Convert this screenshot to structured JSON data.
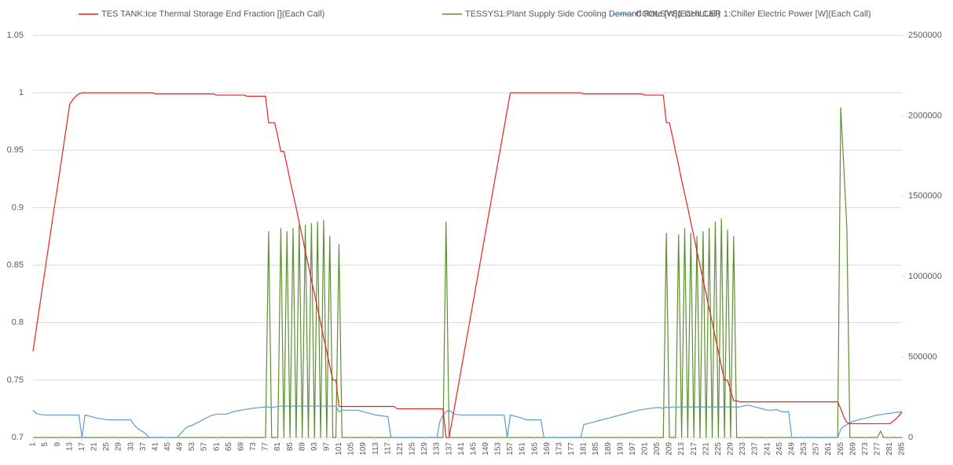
{
  "chart_data": {
    "type": "line",
    "legend": "top",
    "grid": true,
    "xlim": [
      1,
      285
    ],
    "xticks": [
      1,
      5,
      9,
      13,
      17,
      21,
      25,
      29,
      33,
      37,
      41,
      45,
      49,
      53,
      57,
      61,
      65,
      69,
      73,
      77,
      81,
      85,
      89,
      93,
      97,
      101,
      105,
      109,
      113,
      117,
      121,
      125,
      129,
      133,
      137,
      141,
      145,
      149,
      153,
      157,
      161,
      165,
      169,
      173,
      177,
      181,
      185,
      189,
      193,
      197,
      201,
      205,
      209,
      213,
      217,
      221,
      225,
      229,
      233,
      237,
      241,
      245,
      249,
      253,
      257,
      261,
      265,
      269,
      273,
      277,
      281,
      285
    ],
    "ylim": [
      0.7,
      1.05
    ],
    "yticks": [
      0.7,
      0.75,
      0.8,
      0.85,
      0.9,
      0.95,
      1,
      1.05
    ],
    "y2lim": [
      0,
      2500000
    ],
    "y2ticks": [
      0,
      500000,
      1000000,
      1500000,
      2000000,
      2500000
    ],
    "x": [
      1,
      2,
      3,
      4,
      5,
      6,
      7,
      8,
      9,
      10,
      11,
      12,
      13,
      14,
      15,
      16,
      17,
      18,
      19,
      20,
      21,
      22,
      23,
      24,
      25,
      26,
      27,
      28,
      29,
      30,
      31,
      32,
      33,
      34,
      35,
      36,
      37,
      38,
      39,
      40,
      41,
      42,
      43,
      44,
      45,
      46,
      47,
      48,
      49,
      50,
      51,
      52,
      53,
      54,
      55,
      56,
      57,
      58,
      59,
      60,
      61,
      62,
      63,
      64,
      65,
      66,
      67,
      68,
      69,
      70,
      71,
      72,
      73,
      74,
      75,
      76,
      77,
      78,
      79,
      80,
      81,
      82,
      83,
      84,
      85,
      86,
      87,
      88,
      89,
      90,
      91,
      92,
      93,
      94,
      95,
      96,
      97,
      98,
      99,
      100,
      101,
      102,
      103,
      104,
      105,
      106,
      107,
      108,
      109,
      110,
      111,
      112,
      113,
      114,
      115,
      116,
      117,
      118,
      119,
      120,
      121,
      122,
      123,
      124,
      125,
      126,
      127,
      128,
      129,
      130,
      131,
      132,
      133,
      134,
      135,
      136,
      137,
      138,
      139,
      140,
      141,
      142,
      143,
      144,
      145,
      146,
      147,
      148,
      149,
      150,
      151,
      152,
      153,
      154,
      155,
      156,
      157,
      158,
      159,
      160,
      161,
      162,
      163,
      164,
      165,
      166,
      167,
      168,
      169,
      170,
      171,
      172,
      173,
      174,
      175,
      176,
      177,
      178,
      179,
      180,
      181,
      182,
      183,
      184,
      185,
      186,
      187,
      188,
      189,
      190,
      191,
      192,
      193,
      194,
      195,
      196,
      197,
      198,
      199,
      200,
      201,
      202,
      203,
      204,
      205,
      206,
      207,
      208,
      209,
      210,
      211,
      212,
      213,
      214,
      215,
      216,
      217,
      218,
      219,
      220,
      221,
      222,
      223,
      224,
      225,
      226,
      227,
      228,
      229,
      230,
      231,
      232,
      233,
      234,
      235,
      236,
      237,
      238,
      239,
      240,
      241,
      242,
      243,
      244,
      245,
      246,
      247,
      248,
      249,
      250,
      251,
      252,
      253,
      254,
      255,
      256,
      257,
      258,
      259,
      260,
      261,
      262,
      263,
      264,
      265,
      266,
      267,
      268,
      269,
      270,
      271,
      272,
      273,
      274,
      275,
      276,
      277,
      278,
      279,
      280,
      281,
      282,
      283,
      284,
      285
    ],
    "series": [
      {
        "name": "TES TANK:Ice Thermal Storage End Fraction [](Each Call)",
        "color": "#e8231f",
        "axis": "y",
        "values": [
          0.775,
          0.793,
          0.811,
          0.829,
          0.847,
          0.865,
          0.883,
          0.901,
          0.918,
          0.936,
          0.954,
          0.972,
          0.99,
          0.994,
          0.997,
          0.999,
          1,
          1,
          1,
          1,
          1,
          1,
          1,
          1,
          1,
          1,
          1,
          1,
          1,
          1,
          1,
          1,
          1,
          1,
          1,
          1,
          1,
          1,
          1,
          1,
          0.999,
          0.999,
          0.999,
          0.999,
          0.999,
          0.999,
          0.999,
          0.999,
          0.999,
          0.999,
          0.999,
          0.999,
          0.999,
          0.999,
          0.999,
          0.999,
          0.999,
          0.999,
          0.999,
          0.999,
          0.998,
          0.998,
          0.998,
          0.998,
          0.998,
          0.998,
          0.998,
          0.998,
          0.998,
          0.998,
          0.997,
          0.997,
          0.997,
          0.997,
          0.997,
          0.997,
          0.997,
          0.974,
          0.974,
          0.974,
          0.962,
          0.949,
          0.949,
          0.937,
          0.924,
          0.912,
          0.9,
          0.887,
          0.875,
          0.862,
          0.85,
          0.837,
          0.825,
          0.812,
          0.8,
          0.787,
          0.775,
          0.762,
          0.75,
          0.75,
          0.727,
          0.727,
          0.727,
          0.727,
          0.727,
          0.727,
          0.727,
          0.727,
          0.727,
          0.727,
          0.727,
          0.727,
          0.727,
          0.727,
          0.727,
          0.727,
          0.727,
          0.727,
          0.727,
          0.725,
          0.725,
          0.725,
          0.725,
          0.725,
          0.725,
          0.725,
          0.725,
          0.725,
          0.725,
          0.725,
          0.725,
          0.725,
          0.725,
          0.725,
          0.725,
          0.7,
          0.7,
          0.715,
          0.73,
          0.745,
          0.76,
          0.775,
          0.79,
          0.805,
          0.82,
          0.835,
          0.85,
          0.865,
          0.88,
          0.895,
          0.91,
          0.925,
          0.94,
          0.955,
          0.97,
          0.985,
          1,
          1,
          1,
          1,
          1,
          1,
          1,
          1,
          1,
          1,
          1,
          1,
          1,
          1,
          1,
          1,
          1,
          1,
          1,
          1,
          1,
          1,
          1,
          1,
          0.999,
          0.999,
          0.999,
          0.999,
          0.999,
          0.999,
          0.999,
          0.999,
          0.999,
          0.999,
          0.999,
          0.999,
          0.999,
          0.999,
          0.999,
          0.999,
          0.999,
          0.999,
          0.999,
          0.999,
          0.998,
          0.998,
          0.998,
          0.998,
          0.998,
          0.998,
          0.998,
          0.974,
          0.974,
          0.962,
          0.949,
          0.937,
          0.924,
          0.912,
          0.9,
          0.887,
          0.875,
          0.862,
          0.85,
          0.837,
          0.825,
          0.812,
          0.8,
          0.787,
          0.775,
          0.762,
          0.75,
          0.75,
          0.741,
          0.732,
          0.732,
          0.731,
          0.731,
          0.731,
          0.731,
          0.731,
          0.731,
          0.731,
          0.731,
          0.731,
          0.731,
          0.731,
          0.731,
          0.731,
          0.731,
          0.731,
          0.731,
          0.731,
          0.731,
          0.731,
          0.731,
          0.731,
          0.731,
          0.731,
          0.731,
          0.731,
          0.731,
          0.731,
          0.731,
          0.731,
          0.731,
          0.731,
          0.731,
          0.731,
          0.725,
          0.718,
          0.713,
          0.712,
          0.712,
          0.712,
          0.712,
          0.712,
          0.712,
          0.712,
          0.712,
          0.712,
          0.712,
          0.712,
          0.712,
          0.712,
          0.712,
          0.714,
          0.716,
          0.719,
          0.722
        ]
      },
      {
        "name": "TESSYS1:Plant Supply Side Cooling Demand Rate [W](Each Call)",
        "color": "#5e8f32",
        "axis": "y2",
        "values": [
          0,
          0,
          0,
          0,
          0,
          0,
          0,
          0,
          0,
          0,
          0,
          0,
          0,
          0,
          0,
          0,
          0,
          0,
          0,
          0,
          0,
          0,
          0,
          0,
          0,
          0,
          0,
          0,
          0,
          0,
          0,
          0,
          0,
          0,
          0,
          0,
          0,
          0,
          0,
          0,
          0,
          0,
          0,
          0,
          0,
          0,
          0,
          0,
          0,
          0,
          0,
          0,
          0,
          0,
          0,
          0,
          0,
          0,
          0,
          0,
          0,
          0,
          0,
          0,
          0,
          0,
          0,
          0,
          0,
          0,
          0,
          0,
          0,
          0,
          0,
          0,
          0,
          1280000,
          0,
          0,
          0,
          1300000,
          0,
          1280000,
          0,
          1300000,
          0,
          1320000,
          0,
          1320000,
          0,
          1330000,
          0,
          1340000,
          0,
          1350000,
          0,
          1250000,
          0,
          0,
          1200000,
          0,
          0,
          0,
          0,
          0,
          0,
          0,
          0,
          0,
          0,
          0,
          0,
          0,
          0,
          0,
          0,
          0,
          0,
          0,
          0,
          0,
          0,
          0,
          0,
          0,
          0,
          0,
          0,
          0,
          0,
          0,
          0,
          0,
          0,
          1340000,
          0,
          0,
          0,
          0,
          0,
          0,
          0,
          0,
          0,
          0,
          0,
          0,
          0,
          0,
          0,
          0,
          0,
          0,
          0,
          0,
          0,
          0,
          0,
          0,
          0,
          0,
          0,
          0,
          0,
          0,
          0,
          0,
          0,
          0,
          0,
          0,
          0,
          0,
          0,
          0,
          0,
          0,
          0,
          0,
          0,
          0,
          0,
          0,
          0,
          0,
          0,
          0,
          0,
          0,
          0,
          0,
          0,
          0,
          0,
          0,
          0,
          0,
          0,
          0,
          0,
          0,
          0,
          0,
          0,
          0,
          0,
          1270000,
          0,
          0,
          0,
          1260000,
          0,
          1300000,
          0,
          1270000,
          0,
          1250000,
          0,
          1280000,
          0,
          1300000,
          0,
          1340000,
          0,
          1360000,
          0,
          1290000,
          0,
          1250000,
          0,
          0,
          0,
          0,
          0,
          0,
          0,
          0,
          0,
          0,
          0,
          0,
          0,
          0,
          0,
          0,
          0,
          0,
          0,
          0,
          0,
          0,
          0,
          0,
          0,
          0,
          0,
          0,
          0,
          0,
          0,
          0,
          0,
          0,
          2050000,
          1680000,
          1300000,
          0,
          0,
          0,
          0,
          0,
          0,
          0,
          0,
          0,
          0,
          40000,
          0,
          0,
          0,
          0,
          0,
          0,
          0
        ]
      },
      {
        "name": "COOLSYS1 CHILLER 1:Chiller Electric Power [W](Each Call)",
        "color": "#5b9bd5",
        "axis": "y2",
        "values": [
          170000,
          150000,
          145000,
          142000,
          140000,
          140000,
          140000,
          140000,
          140000,
          140000,
          140000,
          140000,
          140000,
          140000,
          140000,
          140000,
          0,
          140000,
          135000,
          130000,
          125000,
          120000,
          118000,
          115000,
          110000,
          110000,
          110000,
          110000,
          110000,
          110000,
          110000,
          110000,
          110000,
          80000,
          60000,
          45000,
          35000,
          20000,
          0,
          0,
          0,
          0,
          0,
          0,
          0,
          0,
          0,
          0,
          20000,
          40000,
          60000,
          70000,
          75000,
          85000,
          95000,
          105000,
          115000,
          125000,
          135000,
          140000,
          145000,
          145000,
          145000,
          145000,
          150000,
          158000,
          162000,
          166000,
          170000,
          173000,
          176000,
          179000,
          182000,
          184000,
          186000,
          188000,
          190000,
          190000,
          185000,
          190000,
          192000,
          195000,
          195000,
          195000,
          195000,
          195000,
          195000,
          195000,
          195000,
          195000,
          195000,
          195000,
          195000,
          195000,
          195000,
          195000,
          195000,
          195000,
          195000,
          195000,
          160000,
          170000,
          170000,
          170000,
          170000,
          170000,
          170000,
          165000,
          160000,
          155000,
          150000,
          145000,
          140000,
          138000,
          135000,
          132000,
          130000,
          0,
          0,
          0,
          0,
          0,
          0,
          0,
          0,
          0,
          0,
          0,
          0,
          0,
          0,
          0,
          0,
          100000,
          140000,
          160000,
          170000,
          155000,
          145000,
          142000,
          140000,
          140000,
          140000,
          140000,
          140000,
          140000,
          140000,
          140000,
          140000,
          140000,
          140000,
          140000,
          140000,
          140000,
          140000,
          0,
          140000,
          135000,
          130000,
          125000,
          120000,
          110000,
          110000,
          110000,
          110000,
          110000,
          110000,
          0,
          0,
          0,
          0,
          0,
          0,
          0,
          0,
          0,
          0,
          0,
          0,
          0,
          80000,
          85000,
          90000,
          95000,
          100000,
          105000,
          110000,
          115000,
          120000,
          125000,
          130000,
          135000,
          140000,
          145000,
          150000,
          155000,
          160000,
          165000,
          170000,
          173000,
          176000,
          179000,
          182000,
          184000,
          186000,
          186000,
          180000,
          190000,
          185000,
          192000,
          185000,
          190000,
          190000,
          190000,
          190000,
          190000,
          190000,
          190000,
          190000,
          190000,
          190000,
          190000,
          190000,
          190000,
          190000,
          190000,
          190000,
          190000,
          190000,
          190000,
          190000,
          190000,
          195000,
          200000,
          200000,
          195000,
          190000,
          185000,
          180000,
          175000,
          170000,
          170000,
          170000,
          175000,
          165000,
          160000,
          160000,
          160000,
          0,
          0,
          0,
          0,
          0,
          0,
          0,
          0,
          0,
          0,
          0,
          0,
          0,
          0,
          0,
          0,
          50000,
          70000,
          80000,
          90000,
          100000,
          105000,
          110000,
          115000,
          120000,
          125000,
          130000,
          135000,
          140000,
          142000,
          145000,
          148000,
          150000,
          153000,
          156000,
          158000,
          160000
        ]
      }
    ]
  }
}
